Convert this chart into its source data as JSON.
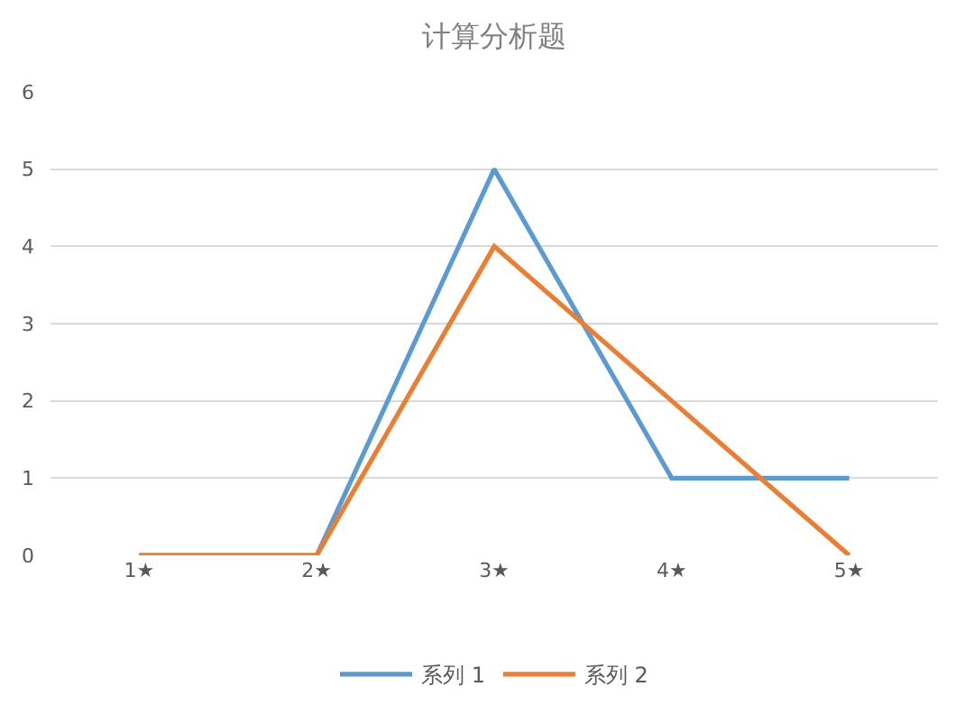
{
  "chart_data": {
    "type": "line",
    "title": "计算分析题",
    "categories": [
      "1★",
      "2★",
      "3★",
      "4★",
      "5★"
    ],
    "series": [
      {
        "name": "系列 1",
        "color": "#5b9bd5",
        "values": [
          0,
          0,
          5,
          1,
          1
        ]
      },
      {
        "name": "系列 2",
        "color": "#ed7d31",
        "values": [
          0,
          0,
          4,
          2,
          0
        ]
      }
    ],
    "ylim": [
      0,
      6
    ],
    "yticks": [
      0,
      1,
      2,
      3,
      4,
      5,
      6
    ],
    "grid": "y",
    "legend": "bottom",
    "marker": "none",
    "line_style": "solid"
  }
}
